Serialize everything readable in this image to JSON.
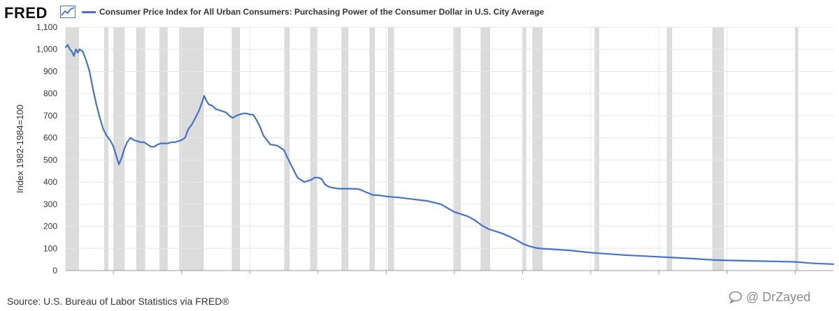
{
  "header": {
    "logo_text": "FRED",
    "logo_icon": "line-graph-icon"
  },
  "footer": {
    "source": "Source: U.S. Bureau of Labor Statistics via FRED®"
  },
  "watermark": {
    "icon": "chat-bubble-icon",
    "text": "@ DrZayed"
  },
  "chart_data": {
    "type": "line",
    "title": "",
    "xlabel": "",
    "ylabel": "Index 1982-1984=100",
    "xlim": [
      1913,
      2025.6
    ],
    "ylim": [
      0,
      1100
    ],
    "x_ticks": [
      1920,
      1930,
      1940,
      1950,
      1960,
      1970,
      1980,
      1990,
      2000,
      2010,
      2020
    ],
    "y_ticks": [
      0,
      100,
      200,
      300,
      400,
      500,
      600,
      700,
      800,
      900,
      1000,
      1100
    ],
    "y_tick_labels": [
      "0",
      "100",
      "200",
      "300",
      "400",
      "500",
      "600",
      "700",
      "800",
      "900",
      "1,000",
      "1,100"
    ],
    "grid": true,
    "legend_position": "top-left",
    "line_color": "#4472c4",
    "recession_color": "#dcdcdc",
    "recessions": [
      [
        1913.0,
        1914.9
      ],
      [
        1918.7,
        1919.2
      ],
      [
        1920.1,
        1921.6
      ],
      [
        1923.4,
        1924.6
      ],
      [
        1926.8,
        1927.9
      ],
      [
        1929.7,
        1933.2
      ],
      [
        1937.4,
        1938.5
      ],
      [
        1945.1,
        1945.8
      ],
      [
        1948.9,
        1949.8
      ],
      [
        1953.5,
        1954.4
      ],
      [
        1957.6,
        1958.3
      ],
      [
        1960.3,
        1961.1
      ],
      [
        1969.9,
        1970.9
      ],
      [
        1973.9,
        1975.2
      ],
      [
        1980.0,
        1980.5
      ],
      [
        1981.5,
        1982.9
      ],
      [
        1990.6,
        1991.2
      ],
      [
        2001.2,
        2001.9
      ],
      [
        2007.9,
        2009.5
      ],
      [
        2020.1,
        2020.4
      ]
    ],
    "series": [
      {
        "name": "Consumer Price Index for All Urban Consumers: Purchasing Power of the Consumer Dollar in U.S. City Average",
        "x": [
          1913.0,
          1913.3,
          1913.6,
          1913.9,
          1914.2,
          1914.5,
          1914.8,
          1915.0,
          1915.5,
          1916.0,
          1916.5,
          1917.0,
          1917.5,
          1918.0,
          1918.5,
          1919.0,
          1919.5,
          1920.0,
          1920.4,
          1920.8,
          1921.2,
          1921.6,
          1922.0,
          1922.5,
          1923.0,
          1923.5,
          1924.0,
          1924.5,
          1925.0,
          1925.5,
          1926.0,
          1926.5,
          1927.0,
          1927.5,
          1928.0,
          1928.5,
          1929.0,
          1929.5,
          1930.0,
          1930.5,
          1931.0,
          1931.5,
          1932.0,
          1932.5,
          1933.0,
          1933.3,
          1933.6,
          1934.0,
          1934.5,
          1935.0,
          1935.5,
          1936.0,
          1936.5,
          1937.0,
          1937.5,
          1938.0,
          1938.5,
          1939.0,
          1939.5,
          1940.0,
          1940.5,
          1941.0,
          1941.5,
          1942.0,
          1942.5,
          1943.0,
          1944.0,
          1945.0,
          1946.0,
          1946.5,
          1947.0,
          1947.5,
          1948.0,
          1948.5,
          1949.0,
          1949.5,
          1950.0,
          1950.5,
          1951.0,
          1951.5,
          1952.0,
          1953.0,
          1954.0,
          1955.0,
          1956.0,
          1957.0,
          1958.0,
          1959.0,
          1960.0,
          1962.0,
          1964.0,
          1966.0,
          1968.0,
          1970.0,
          1972.0,
          1973.0,
          1974.0,
          1975.0,
          1976.0,
          1977.0,
          1978.0,
          1979.0,
          1980.0,
          1981.0,
          1982.0,
          1983.0,
          1985.0,
          1987.0,
          1990.0,
          1995.0,
          2000.0,
          2005.0,
          2008.0,
          2009.0,
          2010.0,
          2013.0,
          2016.0,
          2019.0,
          2020.0,
          2021.0,
          2022.0,
          2023.0,
          2024.0,
          2025.6
        ],
        "values": [
          1010,
          1020,
          1000,
          990,
          970,
          1000,
          985,
          1000,
          990,
          950,
          900,
          820,
          750,
          690,
          640,
          610,
          590,
          560,
          520,
          480,
          510,
          550,
          580,
          600,
          590,
          585,
          580,
          580,
          570,
          560,
          560,
          570,
          575,
          575,
          575,
          580,
          580,
          585,
          590,
          600,
          640,
          660,
          690,
          720,
          760,
          790,
          770,
          750,
          745,
          730,
          725,
          720,
          715,
          700,
          690,
          700,
          705,
          710,
          710,
          705,
          705,
          680,
          650,
          610,
          590,
          570,
          565,
          545,
          480,
          450,
          420,
          410,
          400,
          405,
          410,
          420,
          420,
          415,
          390,
          380,
          375,
          370,
          370,
          370,
          368,
          355,
          342,
          340,
          335,
          330,
          322,
          315,
          300,
          265,
          245,
          228,
          205,
          188,
          178,
          168,
          155,
          140,
          122,
          110,
          102,
          99,
          95,
          91,
          81,
          70,
          62,
          54,
          48,
          47,
          46,
          44,
          42,
          40,
          39,
          37,
          34,
          32,
          31,
          29
        ]
      }
    ]
  }
}
